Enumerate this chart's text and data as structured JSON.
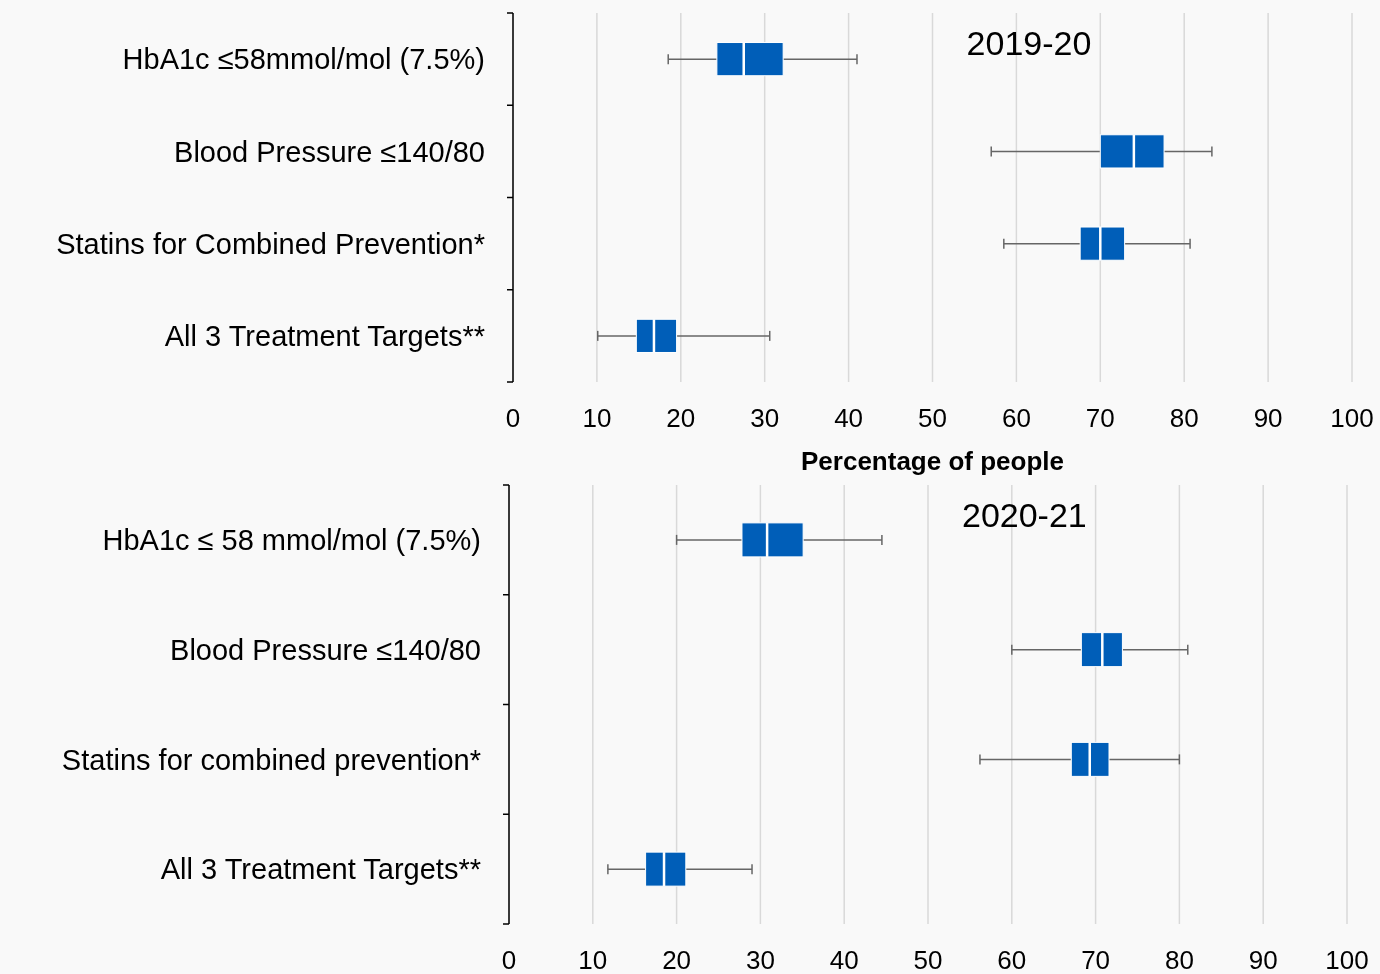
{
  "chart_data": [
    {
      "type": "box",
      "title": "2019-20",
      "orientation": "horizontal",
      "xlabel": "Percentage of people",
      "categories": [
        "HbA1c ≤58mmol/mol (7.5%)",
        "Blood Pressure ≤140/80",
        "Statins for Combined Prevention*",
        "All 3 Treatment Targets**"
      ],
      "color": "#005eb8",
      "xlim": [
        0,
        100
      ],
      "xticks": [
        0,
        10,
        20,
        30,
        40,
        50,
        60,
        70,
        80,
        90,
        100
      ],
      "grid": "x",
      "boxes": [
        {
          "low": 18.5,
          "q1": 24.3,
          "median": 27.5,
          "q3": 32.2,
          "high": 41
        },
        {
          "low": 57,
          "q1": 70,
          "median": 74,
          "q3": 77.6,
          "high": 83.3
        },
        {
          "low": 58.5,
          "q1": 67.6,
          "median": 70,
          "q3": 72.9,
          "high": 80.7
        },
        {
          "low": 10.1,
          "q1": 14.7,
          "median": 16.8,
          "q3": 19.5,
          "high": 30.6
        }
      ]
    },
    {
      "type": "box",
      "title": "2020-21",
      "orientation": "horizontal",
      "categories": [
        "HbA1c ≤ 58 mmol/mol (7.5%)",
        "Blood Pressure ≤140/80",
        "Statins for combined prevention*",
        "All 3 Treatment Targets**"
      ],
      "color": "#005eb8",
      "xlim": [
        0,
        100
      ],
      "xticks": [
        0,
        10,
        20,
        30,
        40,
        50,
        60,
        70,
        80,
        90,
        100
      ],
      "grid": "x",
      "boxes": [
        {
          "low": 20,
          "q1": 27.8,
          "median": 30.8,
          "q3": 35.1,
          "high": 44.5
        },
        {
          "low": 60,
          "q1": 68.3,
          "median": 70.8,
          "q3": 73.2,
          "high": 81
        },
        {
          "low": 56.2,
          "q1": 67.1,
          "median": 69.3,
          "q3": 71.6,
          "high": 80
        },
        {
          "low": 11.8,
          "q1": 16.3,
          "median": 18.5,
          "q3": 21.1,
          "high": 29
        }
      ]
    }
  ]
}
